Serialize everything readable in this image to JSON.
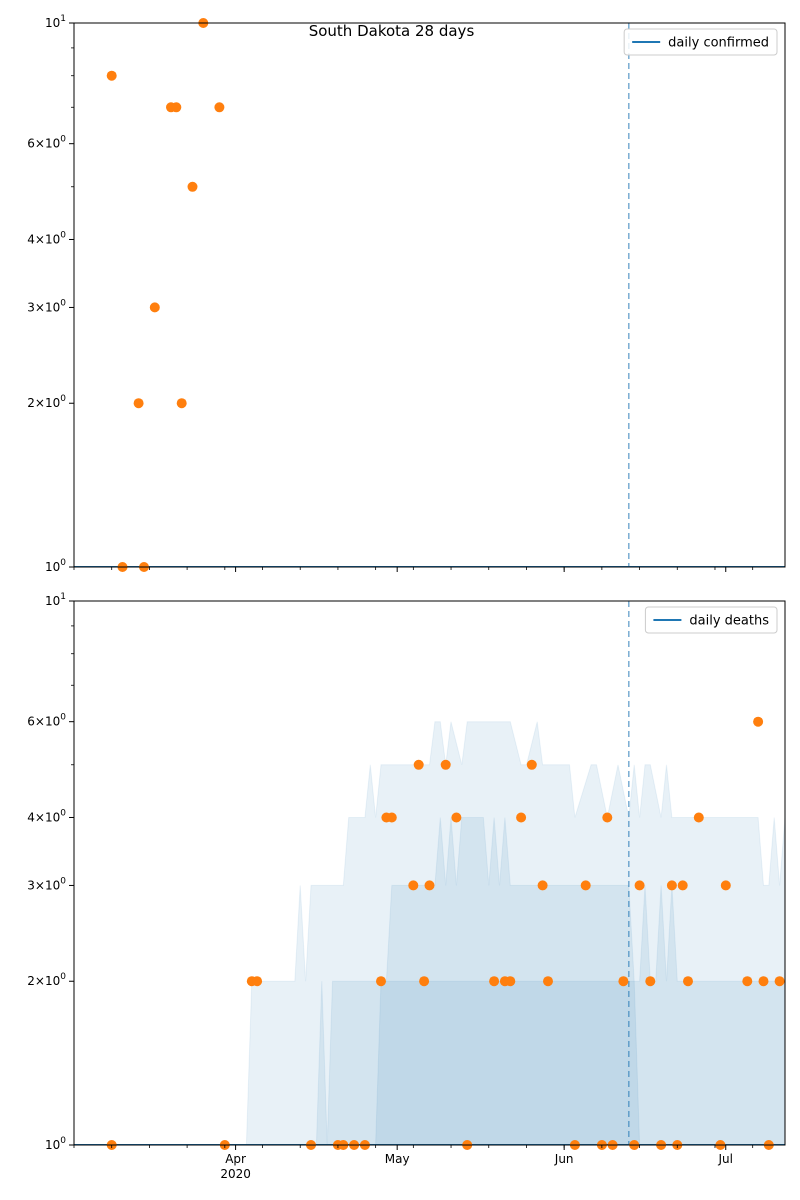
{
  "chart_data": [
    {
      "type": "scatter",
      "title": "South Dakota 28 days",
      "y_scale": "log",
      "ylim": [
        1,
        10
      ],
      "xlim": [
        "2020-03-02",
        "2020-07-12"
      ],
      "y_ticks": [
        "10^0",
        "2×10^0",
        "3×10^0",
        "4×10^0",
        "6×10^0",
        "10^1"
      ],
      "x_ticks": [
        "Apr\n2020",
        "May",
        "Jun",
        "Jul"
      ],
      "x_tick_labels_visible": false,
      "grid": false,
      "legend": {
        "placement": "top-right",
        "entries": [
          "daily confirmed"
        ]
      },
      "colors": {
        "line": "#1f77b4",
        "points": "#ff7f0e",
        "band": "#1f77b4"
      },
      "vline": "2020-06-13",
      "series": [
        {
          "name": "daily confirmed",
          "style": "line",
          "x": [
            "2020-03-02",
            "2020-07-12"
          ],
          "y": [
            1,
            1
          ]
        },
        {
          "style": "points",
          "x": [
            "2020-03-09",
            "2020-03-11",
            "2020-03-14",
            "2020-03-15",
            "2020-03-17",
            "2020-03-20",
            "2020-03-21",
            "2020-03-22",
            "2020-03-24",
            "2020-03-26",
            "2020-03-29"
          ],
          "y": [
            8,
            1,
            2,
            1,
            3,
            7,
            7,
            2,
            5,
            10,
            7
          ]
        }
      ]
    },
    {
      "type": "scatter",
      "y_scale": "log",
      "ylim": [
        1,
        10
      ],
      "xlim": [
        "2020-03-02",
        "2020-07-12"
      ],
      "y_ticks": [
        "10^0",
        "2×10^0",
        "3×10^0",
        "4×10^0",
        "6×10^0",
        "10^1"
      ],
      "x_ticks": [
        "Apr\n2020",
        "May",
        "Jun",
        "Jul"
      ],
      "grid": false,
      "legend": {
        "placement": "top-right",
        "entries": [
          "daily deaths"
        ]
      },
      "colors": {
        "line": "#1f77b4",
        "points": "#ff7f0e",
        "band": "#1f77b4"
      },
      "vline": "2020-06-13",
      "bands": [
        {
          "opacity": 0.1,
          "x": [
            "2020-03-02",
            "2020-04-03",
            "2020-04-04",
            "2020-04-12",
            "2020-04-13",
            "2020-04-14",
            "2020-04-15",
            "2020-04-21",
            "2020-04-22",
            "2020-04-25",
            "2020-04-26",
            "2020-04-27",
            "2020-04-28",
            "2020-05-07",
            "2020-05-08",
            "2020-05-09",
            "2020-05-10",
            "2020-05-11",
            "2020-05-13",
            "2020-05-14",
            "2020-05-22",
            "2020-05-24",
            "2020-05-25",
            "2020-05-27",
            "2020-05-28",
            "2020-06-02",
            "2020-06-03",
            "2020-06-06",
            "2020-06-07",
            "2020-06-09",
            "2020-06-11",
            "2020-06-13",
            "2020-06-14",
            "2020-06-15",
            "2020-06-16",
            "2020-06-17",
            "2020-06-19",
            "2020-06-20",
            "2020-06-21",
            "2020-06-27",
            "2020-06-28",
            "2020-07-01",
            "2020-07-02",
            "2020-07-07",
            "2020-07-08",
            "2020-07-09",
            "2020-07-10",
            "2020-07-11",
            "2020-07-12"
          ],
          "y_upper": [
            1,
            1,
            2,
            2,
            3,
            2,
            3,
            3,
            4,
            4,
            5,
            4,
            5,
            5,
            6,
            6,
            5,
            6,
            5,
            6,
            6,
            5,
            5,
            6,
            5,
            5,
            4,
            5,
            5,
            4,
            5,
            4,
            5,
            4,
            5,
            5,
            4,
            5,
            4,
            4,
            4,
            4,
            4,
            4,
            3,
            3,
            4,
            3,
            4
          ],
          "y_lower": [
            1,
            1,
            1,
            1,
            1,
            1,
            1,
            1,
            1,
            1,
            1,
            1,
            1,
            1,
            1,
            1,
            1,
            1,
            1,
            1,
            1,
            1,
            1,
            1,
            1,
            1,
            1,
            1,
            1,
            1,
            1,
            1,
            1,
            1,
            1,
            1,
            1,
            1,
            1,
            1,
            1,
            1,
            1,
            1,
            1,
            1,
            1,
            1,
            1
          ]
        },
        {
          "opacity": 0.1,
          "x": [
            "2020-04-16",
            "2020-04-17",
            "2020-04-18",
            "2020-04-19",
            "2020-04-29",
            "2020-04-30",
            "2020-05-08",
            "2020-05-09",
            "2020-05-10",
            "2020-05-11",
            "2020-05-12",
            "2020-05-13",
            "2020-05-17",
            "2020-05-18",
            "2020-05-19",
            "2020-05-20",
            "2020-05-21",
            "2020-05-22",
            "2020-05-23",
            "2020-06-13",
            "2020-06-14",
            "2020-06-15",
            "2020-06-16",
            "2020-06-17",
            "2020-06-18",
            "2020-06-19",
            "2020-06-20",
            "2020-06-21",
            "2020-06-22",
            "2020-06-23",
            "2020-06-24",
            "2020-06-25",
            "2020-07-10",
            "2020-07-11",
            "2020-07-12"
          ],
          "y_upper": [
            1,
            2,
            1,
            2,
            2,
            3,
            3,
            4,
            3,
            4,
            3,
            4,
            4,
            3,
            4,
            3,
            4,
            3,
            3,
            3,
            2,
            2,
            3,
            2,
            2,
            3,
            2,
            3,
            2,
            2,
            2,
            2,
            2,
            2,
            2
          ],
          "y_lower": [
            1,
            1,
            1,
            1,
            1,
            1,
            1,
            1,
            1,
            1,
            1,
            1,
            1,
            1,
            1,
            1,
            1,
            1,
            1,
            1,
            1,
            1,
            1,
            1,
            1,
            1,
            1,
            1,
            1,
            1,
            1,
            1,
            1,
            1,
            1
          ]
        },
        {
          "opacity": 0.1,
          "x": [
            "2020-04-27",
            "2020-04-28",
            "2020-04-29",
            "2020-06-13",
            "2020-06-14",
            "2020-06-15"
          ],
          "y_upper": [
            1,
            2,
            2,
            2,
            2,
            1
          ],
          "y_lower": [
            1,
            1,
            1,
            1,
            1,
            1
          ]
        }
      ],
      "series": [
        {
          "name": "daily deaths",
          "style": "line",
          "x": [
            "2020-03-02",
            "2020-07-12"
          ],
          "y": [
            1,
            1
          ]
        },
        {
          "style": "points",
          "x": [
            "2020-03-09",
            "2020-03-30",
            "2020-04-04",
            "2020-04-05",
            "2020-04-15",
            "2020-04-20",
            "2020-04-21",
            "2020-04-23",
            "2020-04-25",
            "2020-04-28",
            "2020-04-29",
            "2020-04-30",
            "2020-05-04",
            "2020-05-05",
            "2020-05-06",
            "2020-05-07",
            "2020-05-10",
            "2020-05-12",
            "2020-05-14",
            "2020-05-19",
            "2020-05-21",
            "2020-05-22",
            "2020-05-24",
            "2020-05-26",
            "2020-05-28",
            "2020-05-29",
            "2020-06-03",
            "2020-06-05",
            "2020-06-08",
            "2020-06-09",
            "2020-06-10",
            "2020-06-12",
            "2020-06-14",
            "2020-06-15",
            "2020-06-17",
            "2020-06-19",
            "2020-06-21",
            "2020-06-22",
            "2020-06-23",
            "2020-06-24",
            "2020-06-26",
            "2020-06-30",
            "2020-07-01",
            "2020-07-05",
            "2020-07-07",
            "2020-07-08",
            "2020-07-09",
            "2020-07-11"
          ],
          "y": [
            1,
            1,
            2,
            2,
            1,
            1,
            1,
            1,
            1,
            2,
            4,
            4,
            3,
            5,
            2,
            3,
            5,
            4,
            1,
            2,
            2,
            2,
            4,
            5,
            3,
            2,
            1,
            3,
            1,
            4,
            1,
            2,
            1,
            3,
            2,
            1,
            3,
            1,
            3,
            2,
            4,
            1,
            3,
            2,
            6,
            2,
            1,
            2
          ]
        }
      ]
    }
  ]
}
